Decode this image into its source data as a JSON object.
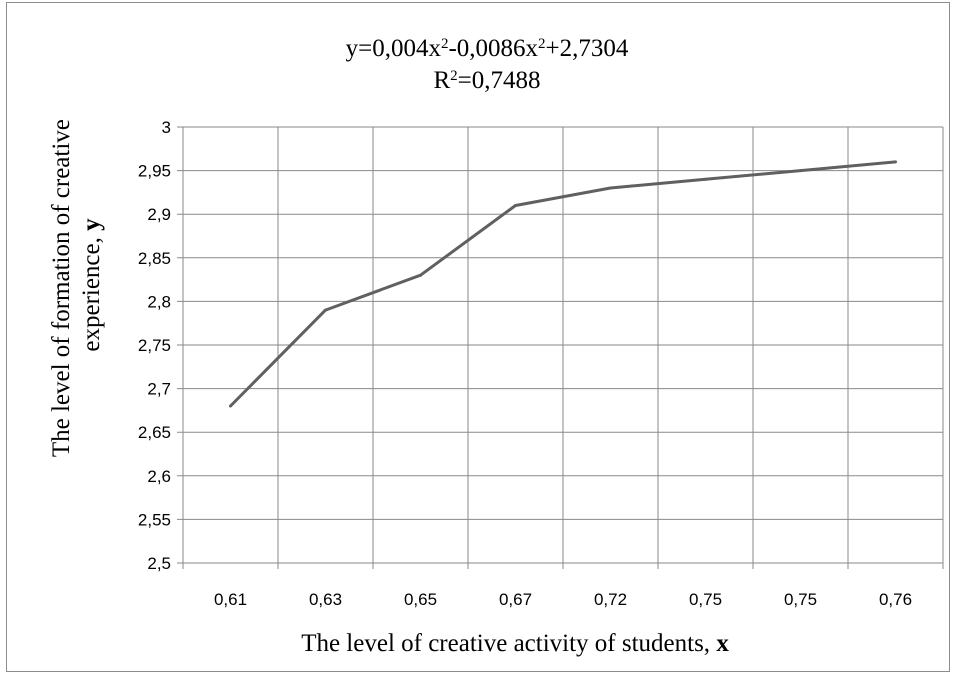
{
  "chart_data": {
    "type": "line",
    "title": {
      "line1_main": "y=0,004x",
      "line1_sup1": "2",
      "line1_mid": "-0,0086x",
      "line1_sup2": "2",
      "line1_end": "+2,7304",
      "line2_main": "R",
      "line2_sup": "2",
      "line2_end": "=0,7488"
    },
    "xlabel": {
      "text": "The level of creative activity of students, ",
      "bold": "x"
    },
    "ylabel": {
      "line1": "The level of formation of creative",
      "line2_text": "experience, ",
      "line2_bold": "y"
    },
    "categories": [
      "0,61",
      "0,63",
      "0,65",
      "0,67",
      "0,72",
      "0,75",
      "0,75",
      "0,76"
    ],
    "values": [
      2.68,
      2.79,
      2.83,
      2.91,
      2.93,
      2.94,
      2.95,
      2.96
    ],
    "ylim": [
      2.5,
      3.0
    ],
    "ystep": 0.05,
    "ytick_labels": [
      "2,5",
      "2,55",
      "2,6",
      "2,65",
      "2,7",
      "2,75",
      "2,8",
      "2,85",
      "2,9",
      "2,95",
      "3"
    ],
    "grid": true,
    "line_color": "#606060"
  }
}
